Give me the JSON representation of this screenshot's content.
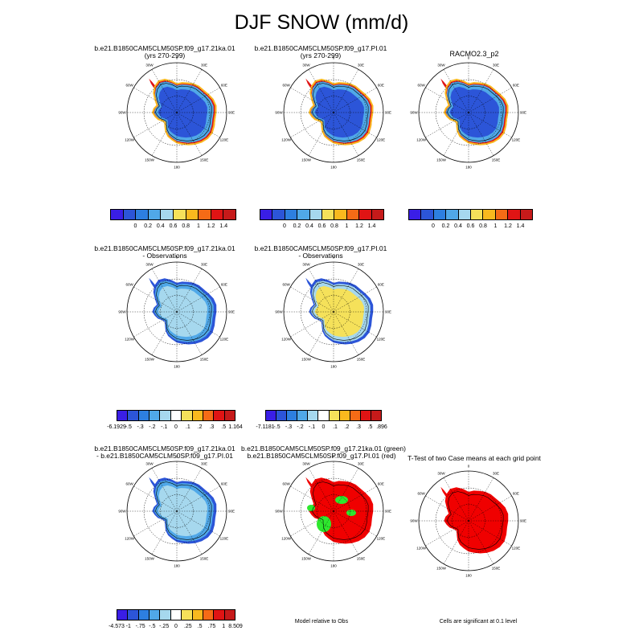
{
  "page": {
    "title": "DJF SNOW (mm/d)"
  },
  "panels": [
    {
      "id": "p1",
      "title_lines": [
        "b.e21.B1850CAM5CLM50SP.f09_g17.21ka.01",
        "(yrs 270-299)"
      ],
      "scheme": "model"
    },
    {
      "id": "p2",
      "title_lines": [
        "b.e21.B1850CAM5CLM50SP.f09_g17.PI.01",
        "(yrs 270-299)"
      ],
      "scheme": "model"
    },
    {
      "id": "p3",
      "title_lines": [
        "RACMO2.3_p2",
        ""
      ],
      "scheme": "model"
    },
    {
      "id": "p4",
      "title_lines": [
        "b.e21.B1850CAM5CLM50SP.f09_g17.21ka.01",
        "- Observations"
      ],
      "scheme": "diff_light"
    },
    {
      "id": "p5",
      "title_lines": [
        "b.e21.B1850CAM5CLM50SP.f09_g17.PI.01",
        "- Observations"
      ],
      "scheme": "diff_yellow"
    },
    {
      "id": "p6",
      "title_lines": [
        "b.e21.B1850CAM5CLM50SP.f09_g17.21ka.01",
        "- b.e21.B1850CAM5CLM50SP.f09_g17.PI.01"
      ],
      "scheme": "diff_light"
    },
    {
      "id": "p7",
      "title_lines": [
        "b.e21.B1850CAM5CLM50SP.f09_g17.21ka.01 (green)",
        "b.e21.B1850CAM5CLM50SP.f09_g17.PI.01 (red)"
      ],
      "scheme": "redgreen"
    },
    {
      "id": "p8",
      "title_lines": [
        "T-Test of two Case means at each grid point",
        ""
      ],
      "scheme": "red"
    }
  ],
  "map_labels": {
    "longitudes": [
      "0",
      "30E",
      "60E",
      "90E",
      "120E",
      "150E",
      "180",
      "150W",
      "120W",
      "90W",
      "60W",
      "30W"
    ]
  },
  "colorbars": [
    {
      "id": "cb1",
      "labels": [
        "0",
        "0.2",
        "0.4",
        "0.6",
        "0.8",
        "1",
        "1.2",
        "1.4"
      ]
    },
    {
      "id": "cb2",
      "labels": [
        "0",
        "0.2",
        "0.4",
        "0.6",
        "0.8",
        "1",
        "1.2",
        "1.4"
      ]
    },
    {
      "id": "cb3",
      "labels": [
        "0",
        "0.2",
        "0.4",
        "0.6",
        "0.8",
        "1",
        "1.2",
        "1.4"
      ]
    },
    {
      "id": "cb4",
      "labels": [
        "-6.1929",
        "-.5",
        "-.3",
        "-.2",
        "-.1",
        "0",
        ".1",
        ".2",
        ".3",
        ".5",
        "1.164"
      ]
    },
    {
      "id": "cb5",
      "labels": [
        "-7.1181",
        "-.5",
        "-.3",
        "-.2",
        "-.1",
        "0",
        ".1",
        ".2",
        ".3",
        ".5",
        ".896"
      ]
    },
    {
      "id": "cb6",
      "labels": [
        "-4.573",
        "-1",
        "-.75",
        "-.5",
        "-.25",
        "0",
        ".25",
        ".5",
        ".75",
        "1",
        "8.509"
      ]
    }
  ],
  "captions": {
    "model_relative": "Model relative to Obs",
    "significance": "Cells are significant at 0.1 level"
  },
  "colors": {
    "seq": [
      "#3a1ee6",
      "#2c55d8",
      "#2d7fe0",
      "#50a8e8",
      "#a6d8ee",
      "#f5e15a",
      "#f9b91e",
      "#f56b16",
      "#e01414",
      "#c61a1a"
    ],
    "div": [
      "#3a1ee6",
      "#2c55d8",
      "#2d7fe0",
      "#50a8e8",
      "#a6d8ee",
      "#ffffff",
      "#f5e15a",
      "#f9b91e",
      "#f56b16",
      "#e01414",
      "#c61a1a"
    ],
    "green": "#2ee82e",
    "red": "#f00000"
  },
  "chart_data": [
    {
      "type": "heatmap",
      "title": "b.e21.B1850CAM5CLM50SP.f09_g17.21ka.01 (yrs 270-299)",
      "variable": "DJF SNOW (mm/d)",
      "levels": [
        0,
        0.2,
        0.4,
        0.6,
        0.8,
        1,
        1.2,
        1.4
      ],
      "interior_value": 0.1,
      "coastal_value": 1.4
    },
    {
      "type": "heatmap",
      "title": "b.e21.B1850CAM5CLM50SP.f09_g17.PI.01 (yrs 270-299)",
      "variable": "DJF SNOW (mm/d)",
      "levels": [
        0,
        0.2,
        0.4,
        0.6,
        0.8,
        1,
        1.2,
        1.4
      ],
      "interior_value": 0.15,
      "coastal_value": 1.4
    },
    {
      "type": "heatmap",
      "title": "RACMO2.3_p2",
      "variable": "DJF SNOW (mm/d)",
      "levels": [
        0,
        0.2,
        0.4,
        0.6,
        0.8,
        1,
        1.2,
        1.4
      ],
      "interior_value": 0.1,
      "coastal_value": 1.4
    },
    {
      "type": "heatmap",
      "title": "21ka - Observations",
      "levels": [
        -0.5,
        -0.3,
        -0.2,
        -0.1,
        0,
        0.1,
        0.2,
        0.3,
        0.5
      ],
      "min": -6.1929,
      "max": 1.164
    },
    {
      "type": "heatmap",
      "title": "PI - Observations",
      "levels": [
        -0.5,
        -0.3,
        -0.2,
        -0.1,
        0,
        0.1,
        0.2,
        0.3,
        0.5
      ],
      "min": -7.1181,
      "max": 0.896
    },
    {
      "type": "heatmap",
      "title": "21ka - PI",
      "levels": [
        -1,
        -0.75,
        -0.5,
        -0.25,
        0,
        0.25,
        0.5,
        0.75,
        1
      ],
      "min": -4.573,
      "max": 8.509
    },
    {
      "type": "heatmap",
      "title": "Model relative to Obs",
      "categories": [
        "21ka (green)",
        "PI (red)"
      ]
    },
    {
      "type": "heatmap",
      "title": "T-Test of two Case means at each grid point",
      "significance_level": 0.1
    }
  ]
}
